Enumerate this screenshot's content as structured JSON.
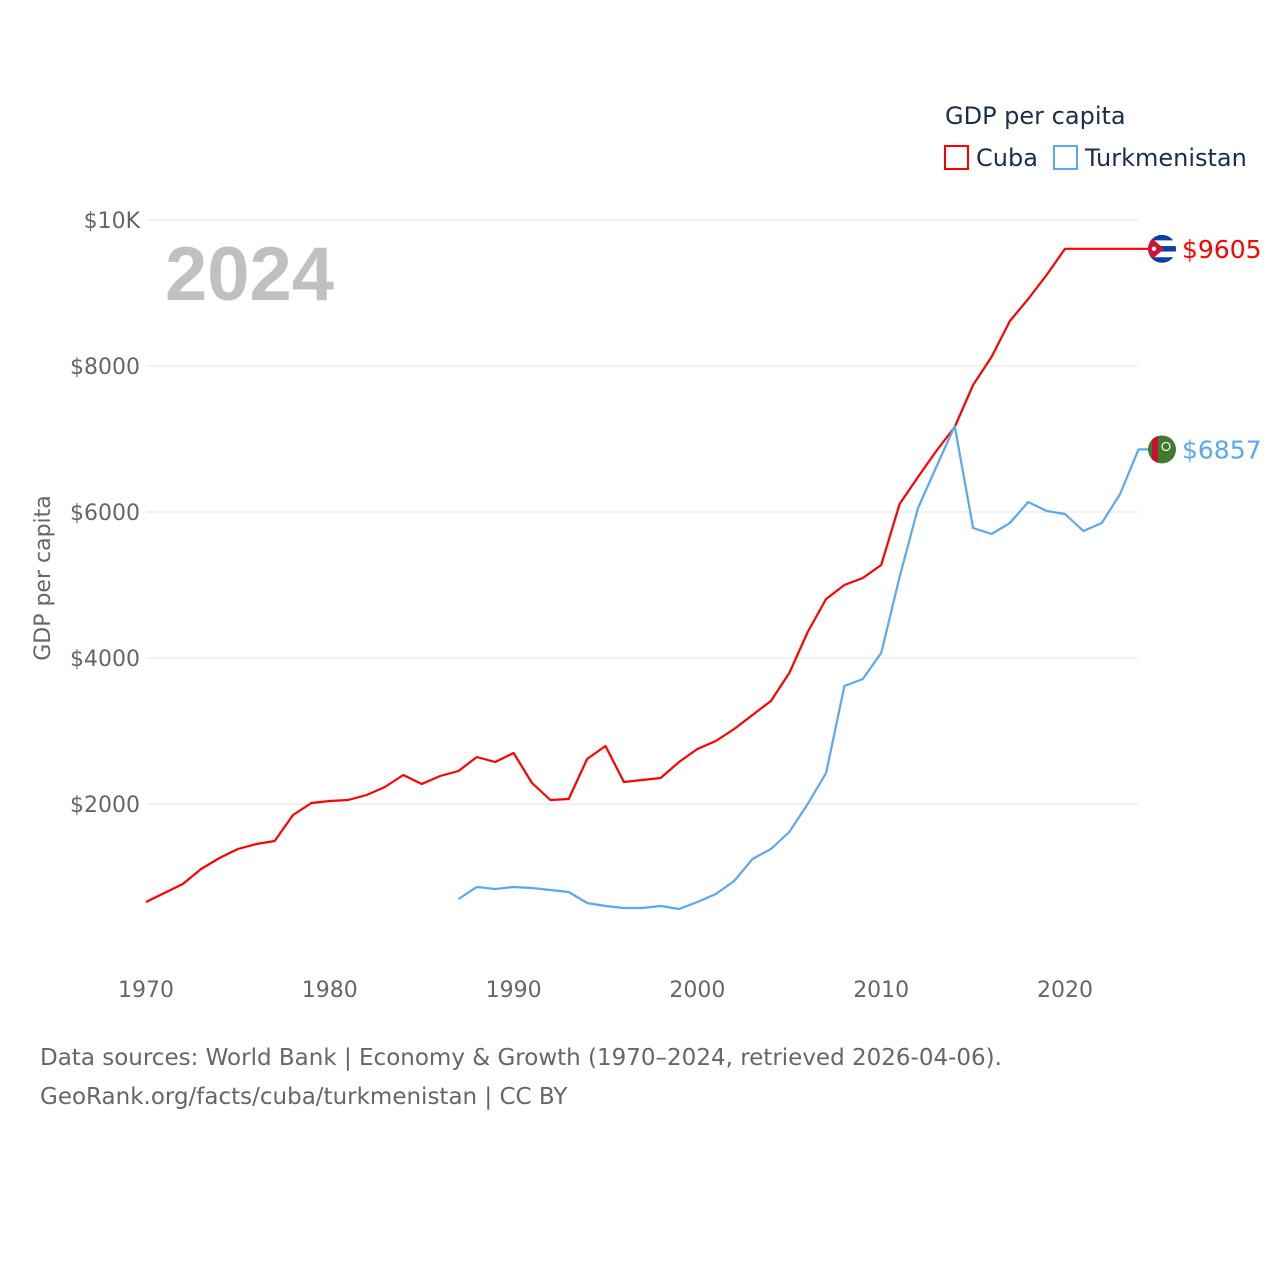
{
  "chart_data": {
    "type": "line",
    "title": "GDP per capita",
    "ylabel": "GDP per capita",
    "xlabel": "",
    "year_label": "2024",
    "ylim": [
      0,
      10000
    ],
    "xlim": [
      1970,
      2024
    ],
    "grid": true,
    "legend_position": "top-right",
    "y_ticks": [
      {
        "v": 2000,
        "label": "$2000"
      },
      {
        "v": 4000,
        "label": "$4000"
      },
      {
        "v": 6000,
        "label": "$6000"
      },
      {
        "v": 8000,
        "label": "$8000"
      },
      {
        "v": 10000,
        "label": "$10K"
      }
    ],
    "x_ticks": [
      1970,
      1980,
      1990,
      2000,
      2010,
      2020
    ],
    "series": [
      {
        "name": "Cuba",
        "color": "#ff0000",
        "end_label": "$9605",
        "flag": "cuba-flag",
        "start": 1970,
        "values": [
          657,
          781,
          904,
          1110,
          1260,
          1384,
          1452,
          1493,
          1849,
          2014,
          2041,
          2055,
          2123,
          2233,
          2397,
          2274,
          2384,
          2452,
          2644,
          2575,
          2699,
          2288,
          2055,
          2068,
          2616,
          2795,
          2301,
          2329,
          2356,
          2575,
          2753,
          2863,
          3027,
          3219,
          3411,
          3795,
          4356,
          4808,
          5000,
          5096,
          5274,
          6110,
          6479,
          6836,
          7164,
          7740,
          8123,
          8616,
          8918,
          9247,
          9605,
          9605,
          9605,
          9605,
          9605
        ]
      },
      {
        "name": "Turkmenistan",
        "color": "#5aa9ef",
        "end_label": "$6857",
        "flag": "turkmenistan-flag",
        "start": 1987,
        "values": [
          699,
          863,
          836,
          863,
          849,
          822,
          795,
          644,
          603,
          575,
          575,
          603,
          562,
          657,
          767,
          945,
          1247,
          1384,
          1616,
          2000,
          2425,
          3616,
          3712,
          4068,
          5110,
          6055,
          6616,
          7178,
          5781,
          5699,
          5849,
          6137,
          6014,
          5973,
          5740,
          5849,
          6247,
          6857
        ]
      }
    ]
  },
  "source": {
    "line1": "Data sources: World Bank | Economy & Growth (1970–2024, retrieved 2026-04-06).",
    "line2": "GeoRank.org/facts/cuba/turkmenistan | CC BY"
  }
}
